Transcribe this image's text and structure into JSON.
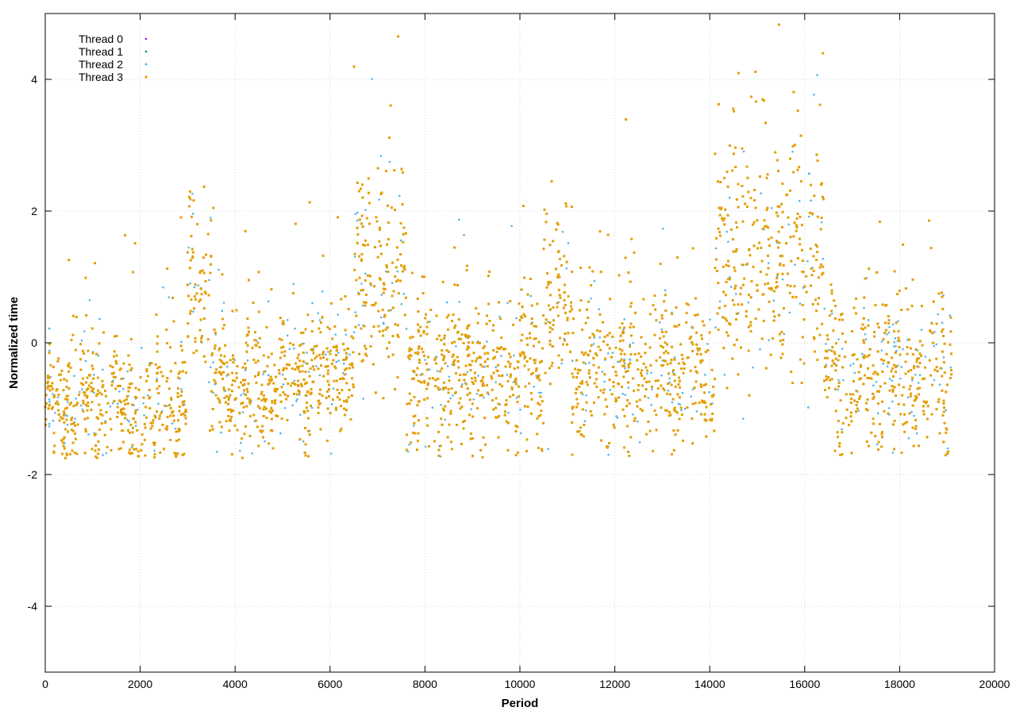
{
  "chart_data": {
    "type": "scatter",
    "title": "",
    "xlabel": "Period",
    "ylabel": "Normalized time",
    "xlim": [
      0,
      20000
    ],
    "ylim": [
      -5,
      5
    ],
    "xticks": [
      0,
      2000,
      4000,
      6000,
      8000,
      10000,
      12000,
      14000,
      16000,
      18000,
      20000
    ],
    "yticks": [
      -4,
      -2,
      0,
      2,
      4
    ],
    "grid": true,
    "legend_position": "top-left",
    "x_extent": [
      0,
      19100
    ],
    "points_per_series": 6000,
    "series": [
      {
        "name": "Thread 0",
        "color": "#9400d3",
        "marker": "plus"
      },
      {
        "name": "Thread 1",
        "color": "#009e73",
        "marker": "dot"
      },
      {
        "name": "Thread 2",
        "color": "#56b4e9",
        "marker": "dot"
      },
      {
        "name": "Thread 3",
        "color": "#e69f00",
        "marker": "square"
      }
    ],
    "regimes": [
      {
        "x": [
          0,
          3000
        ],
        "mean": -1.0,
        "spread": 0.45
      },
      {
        "x": [
          3000,
          3500
        ],
        "mean": 0.9,
        "spread": 0.8
      },
      {
        "x": [
          3500,
          5000
        ],
        "mean": -0.7,
        "spread": 0.45
      },
      {
        "x": [
          5000,
          6500
        ],
        "mean": -0.5,
        "spread": 0.5
      },
      {
        "x": [
          6500,
          7600
        ],
        "mean": 0.9,
        "spread": 0.8
      },
      {
        "x": [
          7600,
          10500
        ],
        "mean": -0.5,
        "spread": 0.55
      },
      {
        "x": [
          10500,
          11100
        ],
        "mean": 0.5,
        "spread": 0.8
      },
      {
        "x": [
          11100,
          14100
        ],
        "mean": -0.5,
        "spread": 0.55
      },
      {
        "x": [
          14100,
          16400
        ],
        "mean": 1.2,
        "spread": 0.9
      },
      {
        "x": [
          16400,
          19100
        ],
        "mean": -0.5,
        "spread": 0.55
      }
    ]
  }
}
